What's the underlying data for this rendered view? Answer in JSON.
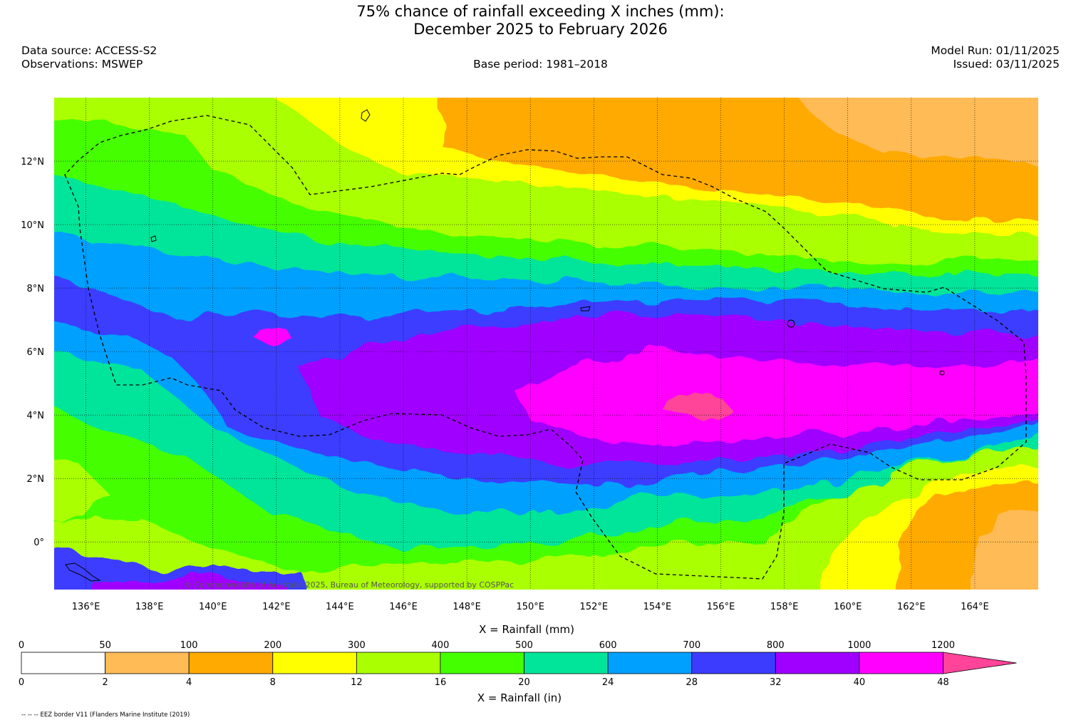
{
  "title": {
    "line1": "75% chance of rainfall exceeding X inches (mm):",
    "line2": "December 2025 to February 2026"
  },
  "info": {
    "data_source": "Data source: ACCESS-S2",
    "observations": "Observations: MSWEP",
    "base_period": "Base period: 1981–2018",
    "model_run": "Model Run: 01/11/2025",
    "issued": "Issued: 03/11/2025"
  },
  "map": {
    "lon_range": [
      135,
      166
    ],
    "lat_range": [
      -1.5,
      14
    ],
    "lon_ticks": [
      "136°E",
      "138°E",
      "140°E",
      "142°E",
      "144°E",
      "146°E",
      "148°E",
      "150°E",
      "152°E",
      "154°E",
      "156°E",
      "158°E",
      "160°E",
      "162°E",
      "164°E"
    ],
    "lat_ticks": [
      "12°N",
      "10°N",
      "8°N",
      "6°N",
      "4°N",
      "2°N",
      "0°"
    ],
    "copyright": "© Commonwealth of Australia 2025, Bureau of Meteorology, supported by COSPPac"
  },
  "legend": {
    "mm_label": "X = Rainfall (mm)",
    "in_label": "X = Rainfall (in)",
    "mm_ticks": [
      "0",
      "50",
      "100",
      "200",
      "300",
      "400",
      "500",
      "600",
      "700",
      "800",
      "1000",
      "1200"
    ],
    "in_ticks": [
      "0",
      "2",
      "4",
      "8",
      "12",
      "16",
      "20",
      "24",
      "28",
      "32",
      "40",
      "48"
    ],
    "colors": [
      "#ffffff",
      "#ffbb55",
      "#ffaa00",
      "#ffff00",
      "#aaff00",
      "#44ff00",
      "#00e599",
      "#00a0ff",
      "#3c3cff",
      "#a000ff",
      "#ff00ff",
      "#ff4499"
    ]
  },
  "footnote": "-- -- -- EEZ border V11 (Flanders Marine Institute (2019)"
}
